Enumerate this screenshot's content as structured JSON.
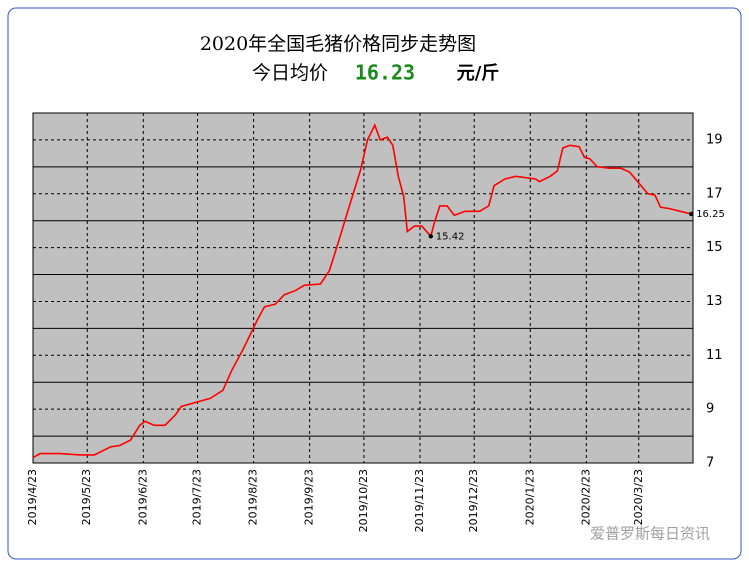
{
  "chart_data": {
    "type": "line",
    "title": "2020年全国毛猪价格同步走势图",
    "subtitle": {
      "text": "今日均价",
      "value": "16.23",
      "unit": "元/斤"
    },
    "watermark": "爱普罗斯每日资讯",
    "x": [
      "2019-04-23",
      "2019-04-27",
      "2019-05-08",
      "2019-05-19",
      "2019-05-27",
      "2019-05-30",
      "2019-06-05",
      "2019-06-10",
      "2019-06-16",
      "2019-06-21",
      "2019-06-24",
      "2019-06-29",
      "2019-07-05",
      "2019-07-11",
      "2019-07-14",
      "2019-07-22",
      "2019-07-30",
      "2019-08-06",
      "2019-08-11",
      "2019-08-17",
      "2019-08-21",
      "2019-08-25",
      "2019-08-29",
      "2019-09-04",
      "2019-09-09",
      "2019-09-15",
      "2019-09-20",
      "2019-09-29",
      "2019-10-04",
      "2019-10-10",
      "2019-10-15",
      "2019-10-21",
      "2019-10-25",
      "2019-10-29",
      "2019-11-01",
      "2019-11-05",
      "2019-11-08",
      "2019-11-11",
      "2019-11-14",
      "2019-11-16",
      "2019-11-20",
      "2019-11-24",
      "2019-11-29",
      "2019-12-01",
      "2019-12-04",
      "2019-12-08",
      "2019-12-12",
      "2019-12-18",
      "2019-12-26",
      "2019-12-31",
      "2020-01-03",
      "2020-01-09",
      "2020-01-15",
      "2020-01-20",
      "2020-01-26",
      "2020-01-28",
      "2020-02-03",
      "2020-02-07",
      "2020-02-10",
      "2020-02-14",
      "2020-02-19",
      "2020-02-22",
      "2020-02-25",
      "2020-02-29",
      "2020-03-07",
      "2020-03-13",
      "2020-03-18",
      "2020-03-23",
      "2020-03-28",
      "2020-04-01",
      "2020-04-04",
      "2020-04-09",
      "2020-04-15",
      "2020-04-21"
    ],
    "series": [
      {
        "name": "毛猪价格",
        "color": "#ff0000",
        "values": [
          7.2,
          7.35,
          7.35,
          7.3,
          7.3,
          7.4,
          7.6,
          7.65,
          7.85,
          8.4,
          8.55,
          8.4,
          8.4,
          8.8,
          9.1,
          9.25,
          9.4,
          9.7,
          10.45,
          11.2,
          11.75,
          12.3,
          12.8,
          12.9,
          13.25,
          13.4,
          13.6,
          13.65,
          14.15,
          15.45,
          16.55,
          17.85,
          19.0,
          19.55,
          19.0,
          19.1,
          18.8,
          17.65,
          16.9,
          15.6,
          15.8,
          15.8,
          15.42,
          15.93,
          16.55,
          16.55,
          16.2,
          16.35,
          16.35,
          16.55,
          17.3,
          17.55,
          17.65,
          17.6,
          17.55,
          17.45,
          17.65,
          17.85,
          18.7,
          18.8,
          18.75,
          18.35,
          18.3,
          18.0,
          17.95,
          17.95,
          17.8,
          17.4,
          17.0,
          16.95,
          16.5,
          16.45,
          16.35,
          16.25
        ]
      }
    ],
    "annotations": [
      {
        "x": "2019-11-29",
        "y": 15.42
      },
      {
        "x": "2020-04-21",
        "y": 16.25
      }
    ],
    "xlim": [
      "2019-04-23",
      "2020-04-22"
    ],
    "xticks": [
      {
        "value": "2019-04-23",
        "label": "2019/4/23"
      },
      {
        "value": "2019-05-23",
        "label": "2019/5/23"
      },
      {
        "value": "2019-06-23",
        "label": "2019/6/23"
      },
      {
        "value": "2019-07-23",
        "label": "2019/7/23"
      },
      {
        "value": "2019-08-23",
        "label": "2019/8/23"
      },
      {
        "value": "2019-09-23",
        "label": "2019/9/23"
      },
      {
        "value": "2019-10-23",
        "label": "2019/10/23"
      },
      {
        "value": "2019-11-23",
        "label": "2019/11/23"
      },
      {
        "value": "2019-12-23",
        "label": "2019/12/23"
      },
      {
        "value": "2020-01-23",
        "label": "2020/1/23"
      },
      {
        "value": "2020-02-23",
        "label": "2020/2/23"
      },
      {
        "value": "2020-03-23",
        "label": "2020/3/23"
      }
    ],
    "ylim": [
      7,
      20
    ],
    "yticks": [
      7,
      9,
      11,
      13,
      15,
      17,
      19
    ],
    "yminor_ticks": [
      8,
      10,
      12,
      14,
      16,
      18
    ],
    "grid": true
  }
}
